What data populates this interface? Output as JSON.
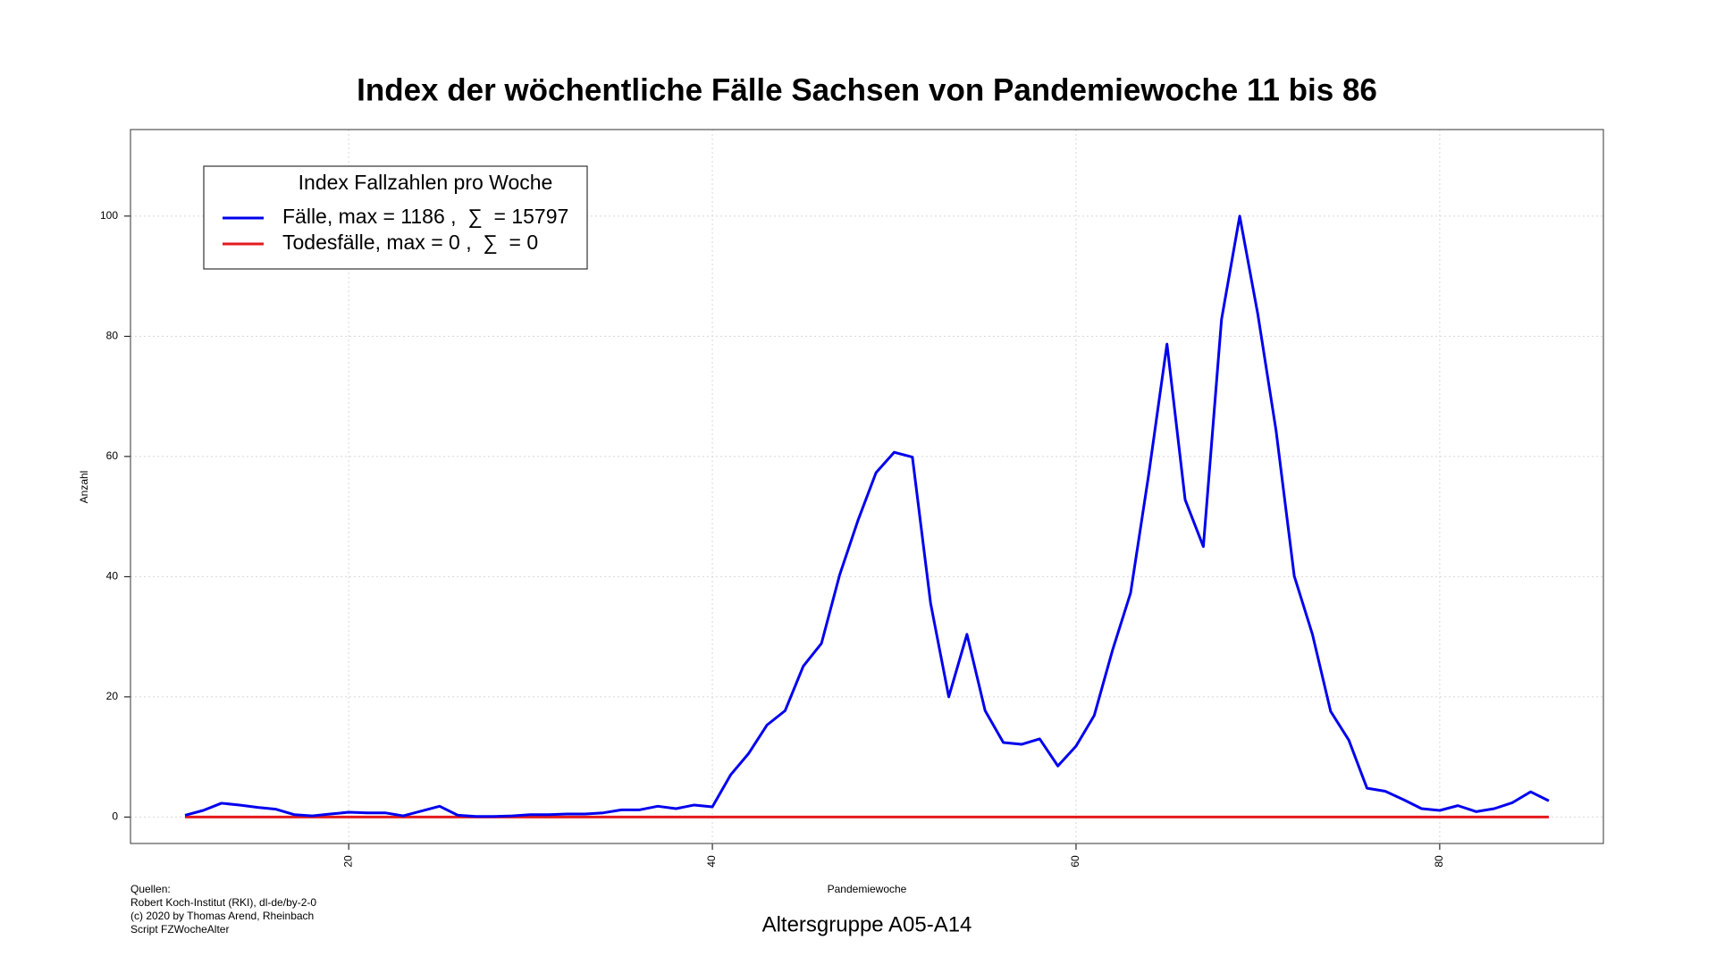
{
  "chart_data": {
    "type": "line",
    "title": "Index der wöchentliche Fälle Sachsen von Pandemiewoche 11 bis 86",
    "subtitle": "Altersgruppe A05-A14",
    "x_label": "Pandemiewoche",
    "y_label": "Anzahl",
    "legend_title": "Index Fallzahlen pro Woche",
    "legend": "topleft",
    "source": [
      "Quellen:",
      "Robert Koch-Institut (RKI), dl-de/by-2-0",
      "(c) 2020 by Thomas Arend, Rheinbach",
      "Script FZWocheAlter"
    ],
    "x": [
      11,
      12,
      13,
      14,
      15,
      16,
      17,
      18,
      19,
      20,
      21,
      22,
      23,
      24,
      25,
      26,
      27,
      28,
      29,
      30,
      31,
      32,
      33,
      34,
      35,
      36,
      37,
      38,
      39,
      40,
      41,
      42,
      43,
      44,
      45,
      46,
      47,
      48,
      49,
      50,
      51,
      52,
      53,
      54,
      55,
      56,
      57,
      58,
      59,
      60,
      61,
      62,
      63,
      64,
      65,
      66,
      67,
      68,
      69,
      70,
      71,
      72,
      73,
      74,
      75,
      76,
      77,
      78,
      79,
      80,
      81,
      82,
      83,
      84,
      85,
      86
    ],
    "series": [
      {
        "name": "Todesfälle, max = 0 ,  ∑  = 0",
        "color": "#e31a1c",
        "values": [
          0,
          0,
          0,
          0,
          0,
          0,
          0,
          0,
          0,
          0,
          0,
          0,
          0,
          0,
          0,
          0,
          0,
          0,
          0,
          0,
          0,
          0,
          0,
          0,
          0,
          0,
          0,
          0,
          0,
          0,
          0,
          0,
          0,
          0,
          0,
          0,
          0,
          0,
          0,
          0,
          0,
          0,
          0,
          0,
          0,
          0,
          0,
          0,
          0,
          0,
          0,
          0,
          0,
          0,
          0,
          0,
          0,
          0,
          0,
          0,
          0,
          0,
          0,
          0,
          0,
          0,
          0,
          0,
          0,
          0,
          0,
          0,
          0,
          0,
          0,
          0
        ]
      },
      {
        "name": "Fälle, max = 1186 ,  ∑  = 15797",
        "color": "#0000ee",
        "values": [
          0.3,
          1.1,
          2.3,
          2.0,
          1.6,
          1.3,
          0.4,
          0.2,
          0.5,
          0.8,
          0.7,
          0.7,
          0.2,
          1.0,
          1.8,
          0.3,
          0.1,
          0.1,
          0.2,
          0.4,
          0.4,
          0.5,
          0.5,
          0.7,
          1.2,
          1.2,
          1.8,
          1.4,
          2.0,
          1.7,
          7.0,
          10.6,
          15.3,
          17.7,
          25.1,
          28.9,
          40.3,
          49.3,
          57.3,
          60.7,
          59.9,
          35.6,
          20.0,
          30.4,
          17.7,
          12.4,
          12.1,
          13.0,
          8.5,
          11.8,
          16.9,
          27.7,
          37.3,
          57.1,
          78.7,
          52.8,
          45.0,
          82.8,
          100,
          83.6,
          64.3,
          40.1,
          30.4,
          17.6,
          12.8,
          4.8,
          4.3,
          2.9,
          1.4,
          1.1,
          1.9,
          0.9,
          1.4,
          2.4,
          4.2,
          2.7
        ]
      }
    ],
    "xlim": [
      8,
      89
    ],
    "xticks": [
      20,
      40,
      60,
      80
    ],
    "ylim": [
      -4.4,
      114.4
    ],
    "yticks": [
      0,
      20,
      40,
      60,
      80,
      100
    ],
    "grid": true
  }
}
